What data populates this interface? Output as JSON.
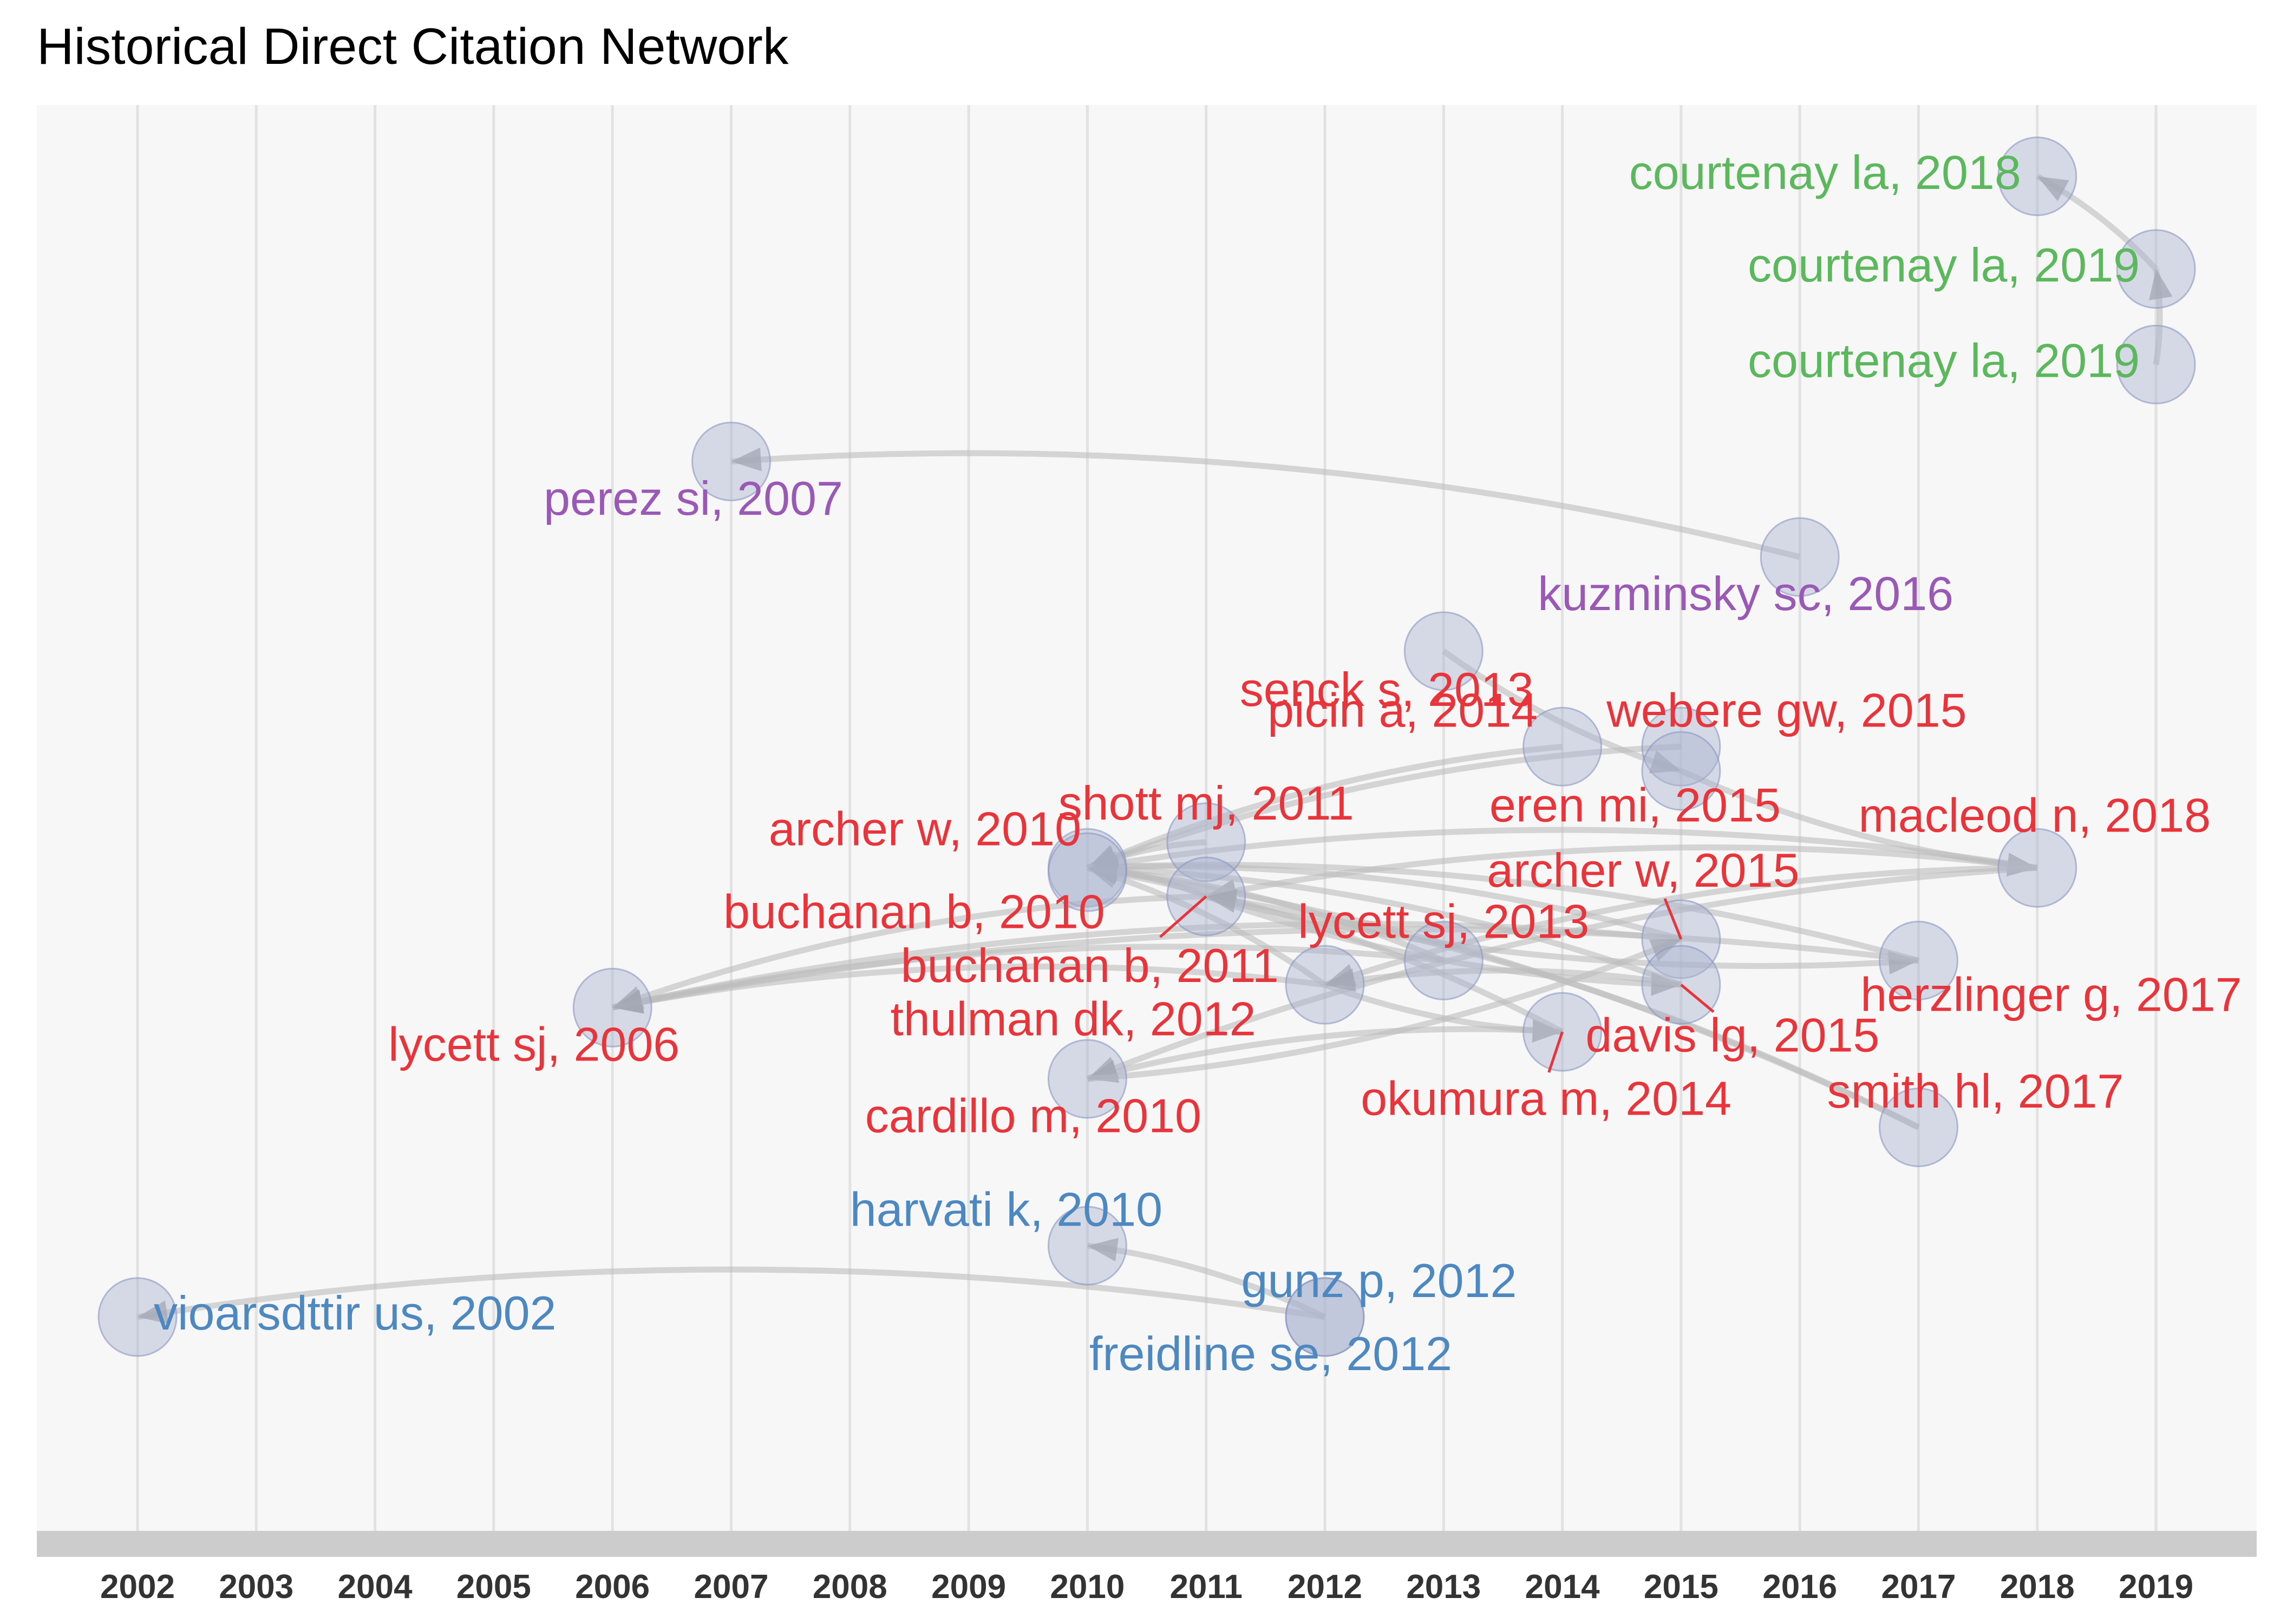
{
  "title": "Historical Direct Citation Network",
  "years": [
    2002,
    2003,
    2004,
    2005,
    2006,
    2007,
    2008,
    2009,
    2010,
    2011,
    2012,
    2013,
    2014,
    2015,
    2016,
    2017,
    2018,
    2019
  ],
  "colors": {
    "red": "#e8353b",
    "blue": "#4d88c0",
    "green": "#5cb85c",
    "purple": "#9b59b6",
    "node_fill": "#aab4d0",
    "edge": "#bdbdbd",
    "panel": "#f7f7f7",
    "axis_band": "#cccccc"
  },
  "nodes": [
    {
      "id": "courtenay2018",
      "label": "courtenay la, 2018",
      "year": 2018,
      "level": 0.95,
      "color": "green"
    },
    {
      "id": "courtenay2019a",
      "label": "courtenay la, 2019",
      "year": 2019,
      "level": 0.885,
      "color": "green"
    },
    {
      "id": "courtenay2019b",
      "label": "courtenay la, 2019",
      "year": 2019,
      "level": 0.818,
      "color": "green"
    },
    {
      "id": "perez2007",
      "label": "perez si, 2007",
      "year": 2007,
      "level": 0.75,
      "color": "purple"
    },
    {
      "id": "kuzminsky2016",
      "label": "kuzminsky sc, 2016",
      "year": 2016,
      "level": 0.683,
      "color": "purple"
    },
    {
      "id": "senck2013",
      "label": "senck s, 2013",
      "year": 2013,
      "level": 0.617,
      "color": "red"
    },
    {
      "id": "picin2014",
      "label": "picin a, 2014",
      "year": 2014,
      "level": 0.55,
      "color": "red"
    },
    {
      "id": "webere2015",
      "label": "webere gw, 2015",
      "year": 2015,
      "level": 0.55,
      "color": "red"
    },
    {
      "id": "eren2015",
      "label": "eren mi, 2015",
      "year": 2015,
      "level": 0.533,
      "color": "red"
    },
    {
      "id": "shott2011",
      "label": "shott mj, 2011",
      "year": 2011,
      "level": 0.483,
      "color": "red"
    },
    {
      "id": "archer2010",
      "label": "archer w, 2010",
      "year": 2010,
      "level": 0.465,
      "color": "red"
    },
    {
      "id": "macleod2018",
      "label": "macleod n, 2018",
      "year": 2018,
      "level": 0.465,
      "color": "red"
    },
    {
      "id": "buchanan2010",
      "label": "buchanan b, 2010",
      "year": 2010,
      "level": 0.462,
      "color": "red"
    },
    {
      "id": "buchanan2011",
      "label": "buchanan b, 2011",
      "year": 2011,
      "level": 0.445,
      "color": "red"
    },
    {
      "id": "archer2015",
      "label": "archer w, 2015",
      "year": 2015,
      "level": 0.415,
      "color": "red"
    },
    {
      "id": "lycett2013",
      "label": "lycett sj, 2013",
      "year": 2013,
      "level": 0.4,
      "color": "red"
    },
    {
      "id": "herzlinger2017",
      "label": "herzlinger g, 2017",
      "year": 2017,
      "level": 0.4,
      "color": "red"
    },
    {
      "id": "thulman2012",
      "label": "thulman dk, 2012",
      "year": 2012,
      "level": 0.383,
      "color": "red"
    },
    {
      "id": "davis2015",
      "label": "davis lg, 2015",
      "year": 2015,
      "level": 0.383,
      "color": "red"
    },
    {
      "id": "lycett2006",
      "label": "lycett sj, 2006",
      "year": 2006,
      "level": 0.367,
      "color": "red"
    },
    {
      "id": "okumura2014",
      "label": "okumura m, 2014",
      "year": 2014,
      "level": 0.35,
      "color": "red"
    },
    {
      "id": "cardillo2010",
      "label": "cardillo m, 2010",
      "year": 2010,
      "level": 0.317,
      "color": "red"
    },
    {
      "id": "smith2017",
      "label": "smith hl, 2017",
      "year": 2017,
      "level": 0.283,
      "color": "red"
    },
    {
      "id": "harvati2010",
      "label": "harvati k, 2010",
      "year": 2010,
      "level": 0.2,
      "color": "blue"
    },
    {
      "id": "gunz2012",
      "label": "gunz p, 2012",
      "year": 2012,
      "level": 0.15,
      "color": "blue"
    },
    {
      "id": "freidline2012",
      "label": "freidline se, 2012",
      "year": 2012,
      "level": 0.15,
      "color": "blue"
    },
    {
      "id": "vioarsdttir2002",
      "label": "vioarsdttir us, 2002",
      "year": 2002,
      "level": 0.15,
      "color": "blue"
    }
  ],
  "edges": [
    {
      "from": "courtenay2019a",
      "to": "courtenay2018"
    },
    {
      "from": "courtenay2019b",
      "to": "courtenay2019a"
    },
    {
      "from": "kuzminsky2016",
      "to": "perez2007"
    },
    {
      "from": "senck2013",
      "to": "eren2015"
    },
    {
      "from": "picin2014",
      "to": "archer2010"
    },
    {
      "from": "webere2015",
      "to": "archer2010"
    },
    {
      "from": "eren2015",
      "to": "macleod2018"
    },
    {
      "from": "shott2011",
      "to": "archer2010"
    },
    {
      "from": "macleod2018",
      "to": "archer2010"
    },
    {
      "from": "macleod2018",
      "to": "buchanan2011"
    },
    {
      "from": "macleod2018",
      "to": "thulman2012"
    },
    {
      "from": "macleod2018",
      "to": "cardillo2010"
    },
    {
      "from": "buchanan2011",
      "to": "archer2010"
    },
    {
      "from": "buchanan2011",
      "to": "lycett2006"
    },
    {
      "from": "buchanan2011",
      "to": "davis2015"
    },
    {
      "from": "buchanan2011",
      "to": "herzlinger2017"
    },
    {
      "from": "archer2015",
      "to": "archer2010"
    },
    {
      "from": "archer2015",
      "to": "lycett2006"
    },
    {
      "from": "lycett2013",
      "to": "lycett2006"
    },
    {
      "from": "lycett2013",
      "to": "archer2010"
    },
    {
      "from": "herzlinger2017",
      "to": "archer2010"
    },
    {
      "from": "herzlinger2017",
      "to": "lycett2006"
    },
    {
      "from": "thulman2012",
      "to": "archer2010"
    },
    {
      "from": "thulman2012",
      "to": "lycett2006"
    },
    {
      "from": "thulman2012",
      "to": "okumura2014"
    },
    {
      "from": "davis2015",
      "to": "archer2010"
    },
    {
      "from": "davis2015",
      "to": "thulman2012"
    },
    {
      "from": "okumura2014",
      "to": "archer2010"
    },
    {
      "from": "okumura2014",
      "to": "cardillo2010"
    },
    {
      "from": "smith2017",
      "to": "archer2010"
    },
    {
      "from": "smith2017",
      "to": "buchanan2011"
    },
    {
      "from": "cardillo2010",
      "to": "archer2015"
    },
    {
      "from": "gunz2012",
      "to": "harvati2010"
    },
    {
      "from": "freidline2012",
      "to": "vioarsdttir2002"
    }
  ]
}
